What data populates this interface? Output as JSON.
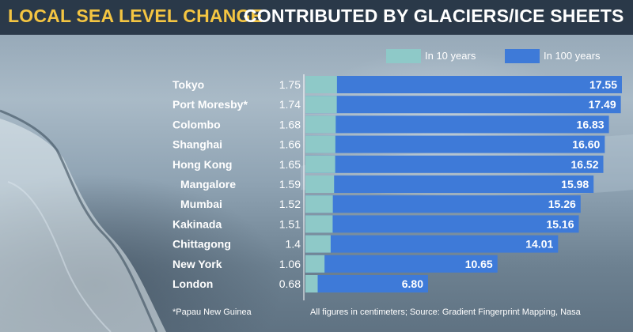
{
  "title": {
    "part1": "LOCAL SEA LEVEL CHANGE",
    "part2": "CONTRIBUTED BY GLACIERS/ICE SHEETS"
  },
  "colors": {
    "title_accent": "#f4c542",
    "bar_10_years": "#8ec9c8",
    "bar_100_years": "#3e7ad8",
    "title_bar_bg": "#223040"
  },
  "footnote": "*Papau New Guinea",
  "source": "All figures in centimeters; Source: Gradient Fingerprint Mapping, Nasa",
  "chart_data": {
    "type": "bar",
    "orientation": "horizontal",
    "unit": "centimeters",
    "categories": [
      "Tokyo",
      "Port Moresby*",
      "Colombo",
      "Shanghai",
      "Hong Kong",
      "Mangalore",
      "Mumbai",
      "Kakinada",
      "Chittagong",
      "New York",
      "London"
    ],
    "category_labels": [
      "Tokyo",
      "Port Moresby*",
      "Colombo",
      "Shanghai",
      "Hong Kong",
      "Mangalore",
      "Mumbai",
      "Kakinada",
      "Chittagong",
      "New York",
      "London"
    ],
    "series": [
      {
        "name": "In 10 years",
        "color": "#8ec9c8",
        "values": [
          1.75,
          1.74,
          1.68,
          1.66,
          1.65,
          1.59,
          1.52,
          1.51,
          1.4,
          1.06,
          0.68
        ],
        "labels": [
          "1.75",
          "1.74",
          "1.68",
          "1.66",
          "1.65",
          "1.59",
          "1.52",
          "1.51",
          "1.4",
          "1.06",
          "0.68"
        ]
      },
      {
        "name": "In 100 years",
        "color": "#3e7ad8",
        "values": [
          17.55,
          17.49,
          16.83,
          16.6,
          16.52,
          15.98,
          15.26,
          15.16,
          14.01,
          10.65,
          6.8
        ],
        "labels": [
          "17.55",
          "17.49",
          "16.83",
          "16.60",
          "16.52",
          "15.98",
          "15.26",
          "15.16",
          "14.01",
          "10.65",
          "6.80"
        ]
      }
    ],
    "xlim": [
      0,
      17.55
    ],
    "grid": false,
    "legend": "top-right"
  }
}
